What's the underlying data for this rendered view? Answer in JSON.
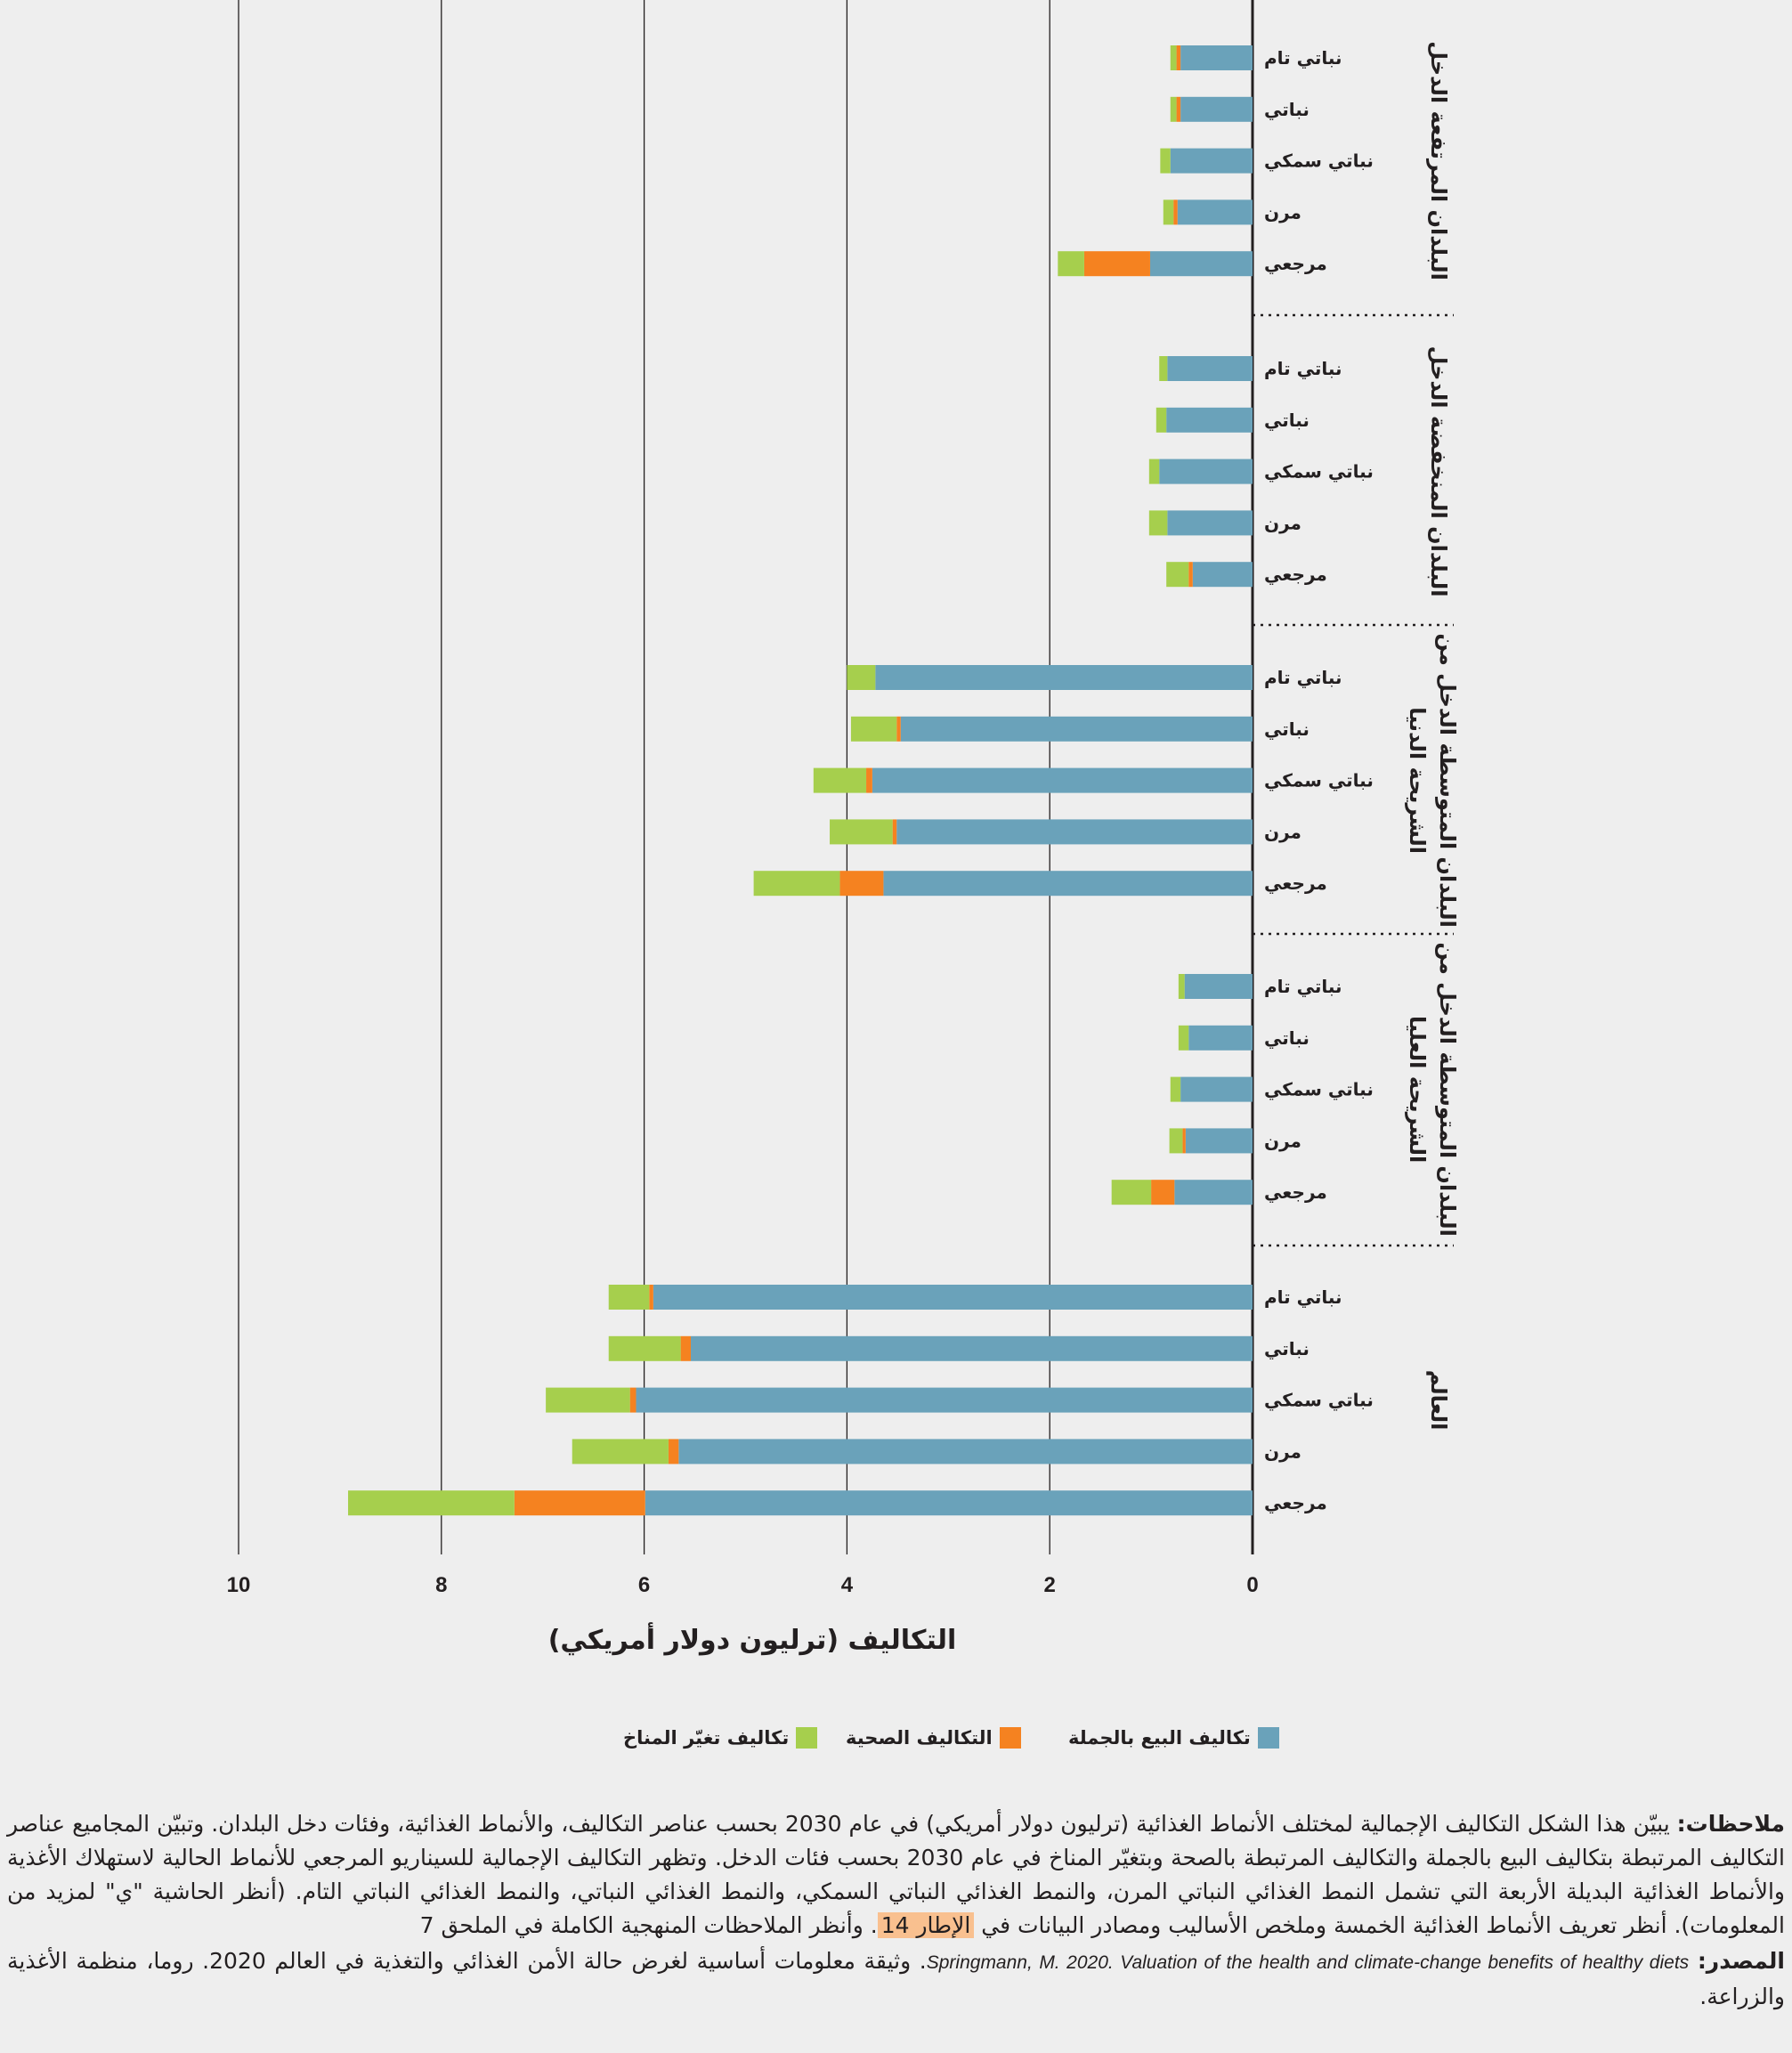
{
  "chart_data": {
    "type": "bar",
    "orientation": "horizontal-stacked",
    "xlabel": "التكاليف (ترليون دولار أمريكي)",
    "xlim": [
      0,
      10
    ],
    "xticks": [
      "0",
      "2",
      "4",
      "6",
      "8",
      "10"
    ],
    "x_reversed": true,
    "grid": true,
    "legend_position": "bottom",
    "series": [
      {
        "name": "تكاليف البيع بالجملة",
        "color": "#6aa2ba"
      },
      {
        "name": "التكاليف الصحية",
        "color": "#f58220"
      },
      {
        "name": "تكاليف تغيّر المناخ",
        "color": "#a6cf4d"
      }
    ],
    "groups": [
      {
        "label_lines": [
          "البلدان المرتفعة الدخل"
        ],
        "rows": [
          {
            "label": "نباتي تام",
            "values": [
              0.71,
              0.04,
              0.06
            ]
          },
          {
            "label": "نباتي",
            "values": [
              0.71,
              0.04,
              0.06
            ]
          },
          {
            "label": "نباتي سمكي",
            "values": [
              0.81,
              0.0,
              0.1
            ]
          },
          {
            "label": "مرن",
            "values": [
              0.74,
              0.04,
              0.1
            ]
          },
          {
            "label": "مرجعي",
            "values": [
              1.01,
              0.65,
              0.26
            ]
          }
        ]
      },
      {
        "label_lines": [
          "البلدان المنخفضة الدخل"
        ],
        "rows": [
          {
            "label": "نباتي تام",
            "values": [
              0.84,
              0.0,
              0.08
            ]
          },
          {
            "label": "نباتي",
            "values": [
              0.85,
              0.0,
              0.1
            ]
          },
          {
            "label": "نباتي سمكي",
            "values": [
              0.92,
              0.0,
              0.1
            ]
          },
          {
            "label": "مرن",
            "values": [
              0.84,
              0.0,
              0.18
            ]
          },
          {
            "label": "مرجعي",
            "values": [
              0.59,
              0.04,
              0.22
            ]
          }
        ]
      },
      {
        "label_lines": [
          "البلدان المتوسطة الدخل من",
          "الشريحة الدنيا"
        ],
        "rows": [
          {
            "label": "نباتي تام",
            "values": [
              3.72,
              0.0,
              0.28
            ]
          },
          {
            "label": "نباتي",
            "values": [
              3.47,
              0.04,
              0.45
            ]
          },
          {
            "label": "نباتي سمكي",
            "values": [
              3.75,
              0.06,
              0.52
            ]
          },
          {
            "label": "مرن",
            "values": [
              3.51,
              0.04,
              0.62
            ]
          },
          {
            "label": "مرجعي",
            "values": [
              3.64,
              0.43,
              0.85
            ]
          }
        ]
      },
      {
        "label_lines": [
          "البلدان المتوسطة الدخل من",
          "الشريحة العليا"
        ],
        "rows": [
          {
            "label": "نباتي تام",
            "values": [
              0.67,
              0.0,
              0.06
            ]
          },
          {
            "label": "نباتي",
            "values": [
              0.63,
              0.0,
              0.1
            ]
          },
          {
            "label": "نباتي سمكي",
            "values": [
              0.71,
              0.0,
              0.1
            ]
          },
          {
            "label": "مرن",
            "values": [
              0.66,
              0.03,
              0.13
            ]
          },
          {
            "label": "مرجعي",
            "values": [
              0.77,
              0.23,
              0.39
            ]
          }
        ]
      },
      {
        "label_lines": [
          "العالم"
        ],
        "rows": [
          {
            "label": "نباتي تام",
            "values": [
              5.91,
              0.04,
              0.4
            ]
          },
          {
            "label": "نباتي",
            "values": [
              5.54,
              0.1,
              0.71
            ]
          },
          {
            "label": "نباتي سمكي",
            "values": [
              6.08,
              0.06,
              0.83
            ]
          },
          {
            "label": "مرن",
            "values": [
              5.66,
              0.1,
              0.95
            ]
          },
          {
            "label": "مرجعي",
            "values": [
              5.99,
              1.29,
              1.64
            ]
          }
        ]
      }
    ]
  },
  "notes": {
    "label": "ملاحظات:",
    "text_1": " يبيّن هذا الشكل التكاليف الإجمالية لمختلف الأنماط الغذائية (ترليون دولار أمريكي) في عام 2030 بحسب عناصر التكاليف، والأنماط الغذائية، وفئات دخل البلدان. وتبيّن المجاميع عناصر التكاليف المرتبطة بتكاليف البيع بالجملة والتكاليف المرتبطة بالصحة وبتغيّر المناخ في عام 2030 بحسب فئات الدخل. وتظهر التكاليف الإجمالية للسيناريو المرجعي للأنماط الحالية لاستهلاك الأغذية والأنماط الغذائية البديلة الأربعة التي تشمل النمط الغذائي النباتي المرن، والنمط الغذائي النباتي السمكي، والنمط الغذائي النباتي، والنمط الغذائي النباتي التام. (أنظر الحاشية \"ي\" لمزيد من المعلومات). أنظر تعريف الأنماط الغذائية الخمسة وملخص الأساليب ومصادر البيانات في ",
    "box_link": "الإطار 14",
    "text_2": ". وأنظر الملاحظات المنهجية الكاملة في الملحق 7",
    "source_label": "المصدر:",
    "source_citation": "Springmann, M. 2020. Valuation of the health and climate-change benefits of healthy diets",
    "source_text": ". وثيقة معلومات أساسية لغرض حالة الأمن الغذائي والتغذية في العالم 2020. روما، منظمة الأغذية والزراعة."
  }
}
